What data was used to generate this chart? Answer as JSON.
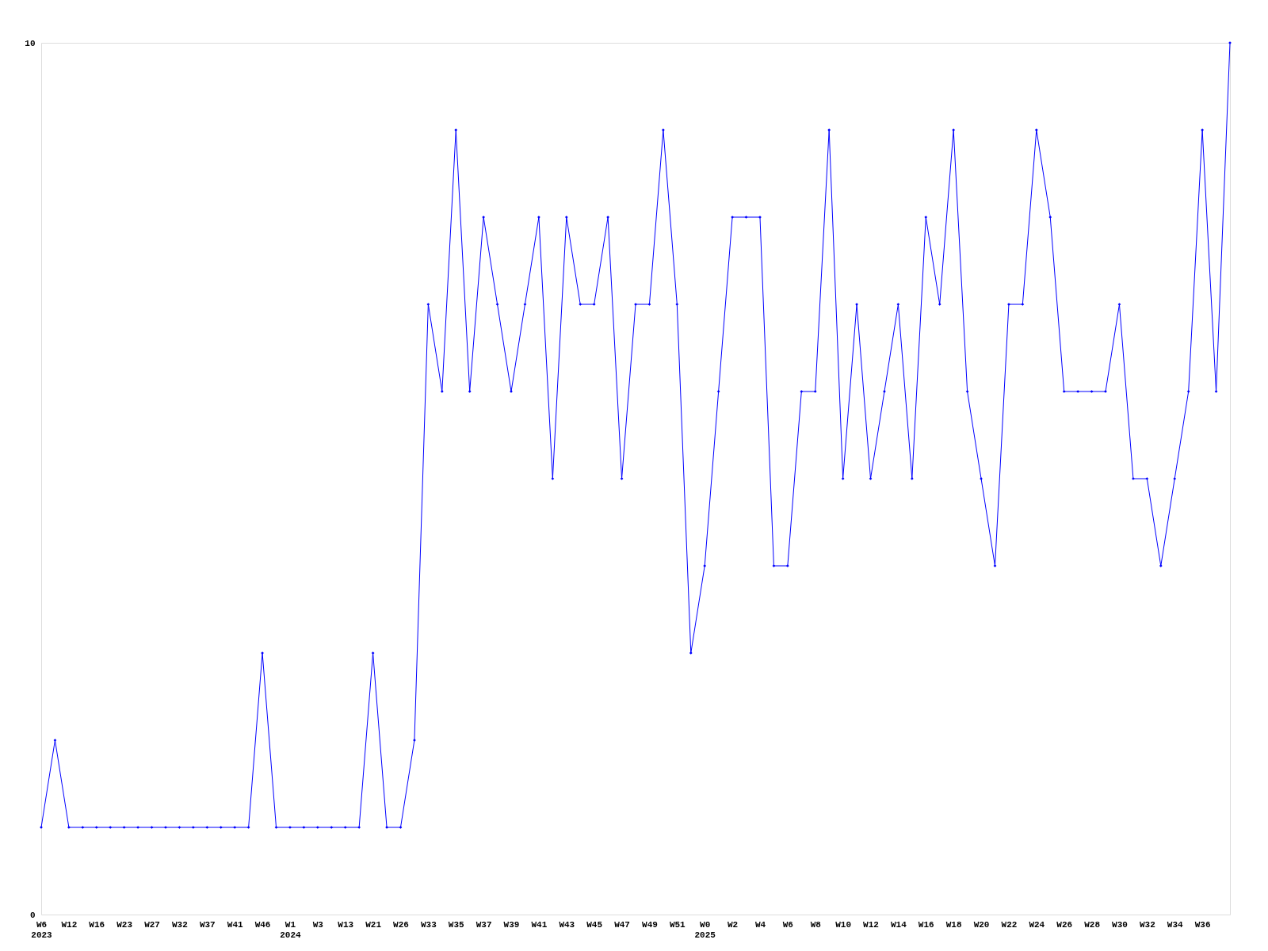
{
  "chart_data": {
    "type": "line",
    "categories": [
      "W6\n2023",
      null,
      "W12",
      null,
      "W16",
      null,
      "W23",
      null,
      "W27",
      null,
      "W32",
      null,
      "W37",
      null,
      "W41",
      null,
      "W46",
      null,
      "W1\n2024",
      null,
      "W3",
      null,
      "W13",
      null,
      "W21",
      null,
      "W26",
      null,
      "W33",
      null,
      "W35",
      null,
      "W37",
      null,
      "W39",
      null,
      "W41",
      null,
      "W43",
      null,
      "W45",
      null,
      "W47",
      null,
      "W49",
      null,
      "W51",
      null,
      "W0\n2025",
      null,
      "W2",
      null,
      "W4",
      null,
      "W6",
      null,
      "W8",
      null,
      "W10",
      null,
      "W12",
      null,
      "W14",
      null,
      "W16",
      null,
      "W18",
      null,
      "W20",
      null,
      "W22",
      null,
      "W24",
      null,
      "W26",
      null,
      "W28",
      null,
      "W30",
      null,
      "W32",
      null,
      "W34",
      null,
      "W36",
      null,
      null
    ],
    "series": [
      {
        "color": "#0000ff",
        "values": [
          1,
          2,
          1,
          1,
          1,
          1,
          1,
          1,
          1,
          1,
          1,
          1,
          1,
          1,
          1,
          1,
          3,
          1,
          1,
          1,
          1,
          1,
          1,
          1,
          3,
          1,
          1,
          2,
          7,
          6,
          9,
          6,
          8,
          7,
          6,
          7,
          8,
          5,
          8,
          7,
          7,
          8,
          5,
          7,
          7,
          9,
          7,
          3,
          4,
          6,
          8,
          8,
          8,
          4,
          4,
          6,
          6,
          9,
          5,
          7,
          5,
          6,
          7,
          5,
          8,
          7,
          9,
          6,
          5,
          4,
          7,
          7,
          9,
          8,
          6,
          6,
          6,
          6,
          7,
          5,
          5,
          4,
          5,
          6,
          9,
          6,
          10
        ]
      }
    ],
    "ylim": [
      0,
      10
    ],
    "yticks": [
      0,
      10
    ],
    "marker": "diamond",
    "line_style": "solid"
  }
}
